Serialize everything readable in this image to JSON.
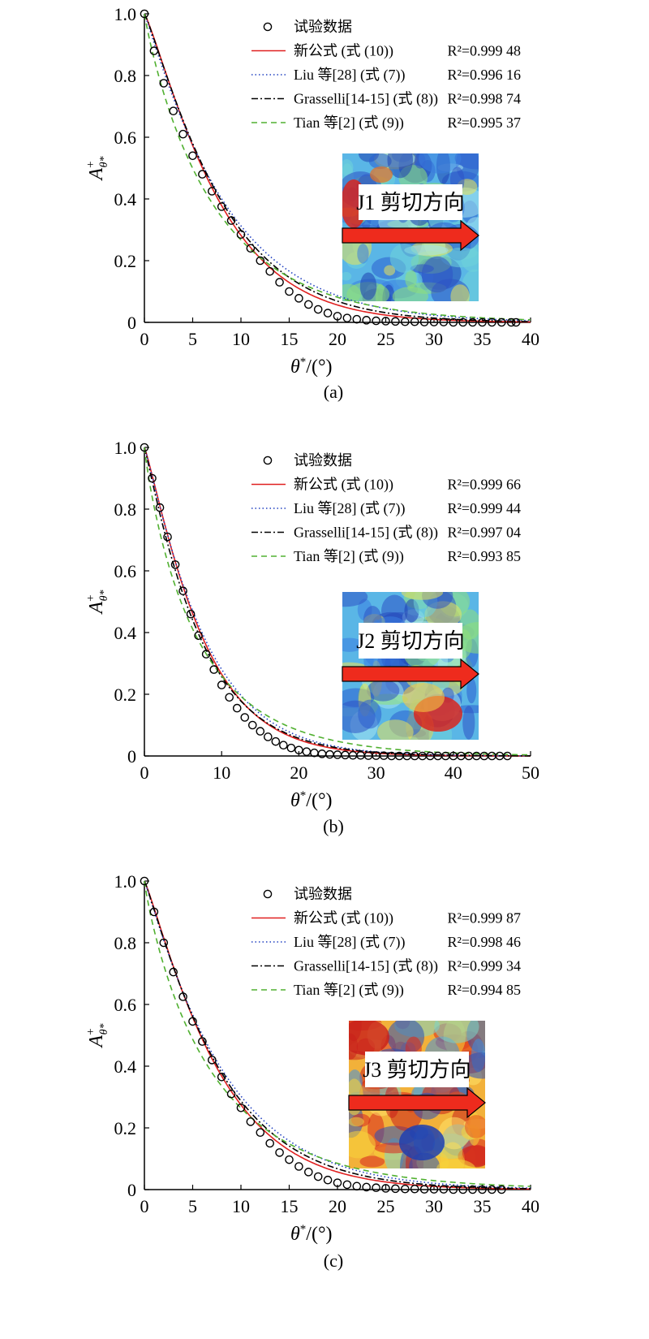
{
  "chart_data": [
    {
      "type": "scatter",
      "panel_label": "(a)",
      "xlabel": "θ*/(°)",
      "ylabel": "A+θ*",
      "xlim": [
        0,
        40
      ],
      "ylim": [
        0,
        1.0
      ],
      "xticks": [
        0,
        5,
        10,
        15,
        20,
        25,
        30,
        35,
        40
      ],
      "yticks": [
        0,
        0.2,
        0.4,
        0.6,
        0.8,
        1.0
      ],
      "inset_label": "J1 剪切方向",
      "inset_palette": "blue",
      "series": [
        {
          "name": "试验数据",
          "kind": "markers",
          "x": [
            0,
            1,
            2,
            3,
            4,
            5,
            6,
            7,
            8,
            9,
            10,
            11,
            12,
            13,
            14,
            15,
            16,
            17,
            18,
            19,
            20,
            21,
            22,
            23,
            24,
            25,
            26,
            27,
            28,
            29,
            30,
            31,
            32,
            33,
            34,
            35,
            36,
            37,
            38,
            38.5
          ],
          "y": [
            1.0,
            0.88,
            0.775,
            0.685,
            0.61,
            0.54,
            0.48,
            0.425,
            0.375,
            0.33,
            0.285,
            0.24,
            0.2,
            0.165,
            0.13,
            0.1,
            0.078,
            0.058,
            0.042,
            0.03,
            0.02,
            0.014,
            0.01,
            0.007,
            0.005,
            0.004,
            0.003,
            0.002,
            0.002,
            0.001,
            0.001,
            0.001,
            0.0,
            0.0,
            0.0,
            0.0,
            0.0,
            0.0,
            0.0,
            0.0
          ]
        },
        {
          "name": "新公式 (式 (10))",
          "r2": "R²=0.999 48",
          "kind": "line",
          "style": "solid",
          "color": "#e02020",
          "k": 0.122,
          "c": 1.6
        },
        {
          "name": "Liu 等[28] (式 (7))",
          "r2": "R²=0.996 16",
          "kind": "line",
          "style": "dotted",
          "color": "#2040c0",
          "k": 0.115,
          "c": 1.45
        },
        {
          "name": "Grasselli[14-15] (式 (8))",
          "r2": "R²=0.998 74",
          "kind": "line",
          "style": "dashdot",
          "color": "#000000",
          "k": 0.118,
          "c": 1.55
        },
        {
          "name": "Tian 等[2] (式 (9))",
          "r2": "R²=0.995 37",
          "kind": "line",
          "style": "dashed",
          "color": "#50b030",
          "k": 0.135,
          "c": 1.25
        }
      ]
    },
    {
      "type": "scatter",
      "panel_label": "(b)",
      "xlabel": "θ*/(°)",
      "ylabel": "A+θ*",
      "xlim": [
        0,
        50
      ],
      "ylim": [
        0,
        1.0
      ],
      "xticks": [
        0,
        10,
        20,
        30,
        40,
        50
      ],
      "yticks": [
        0,
        0.2,
        0.4,
        0.6,
        0.8,
        1.0
      ],
      "inset_label": "J2 剪切方向",
      "inset_palette": "blue",
      "series": [
        {
          "name": "试验数据",
          "kind": "markers",
          "x": [
            0,
            1,
            2,
            3,
            4,
            5,
            6,
            7,
            8,
            9,
            10,
            11,
            12,
            13,
            14,
            15,
            16,
            17,
            18,
            19,
            20,
            21,
            22,
            23,
            24,
            25,
            26,
            27,
            28,
            29,
            30,
            31,
            32,
            33,
            34,
            35,
            36,
            37,
            38,
            39,
            40,
            41,
            42,
            43,
            44,
            45,
            46,
            47
          ],
          "y": [
            1.0,
            0.9,
            0.805,
            0.71,
            0.62,
            0.535,
            0.46,
            0.39,
            0.33,
            0.28,
            0.23,
            0.19,
            0.155,
            0.125,
            0.1,
            0.08,
            0.062,
            0.047,
            0.035,
            0.026,
            0.019,
            0.014,
            0.01,
            0.007,
            0.005,
            0.004,
            0.003,
            0.002,
            0.002,
            0.001,
            0.001,
            0.001,
            0.0,
            0.0,
            0.0,
            0.0,
            0.0,
            0.0,
            0.0,
            0.0,
            0.0,
            0.0,
            0.0,
            0.0,
            0.0,
            0.0,
            0.0,
            0.0
          ]
        },
        {
          "name": "新公式 (式 (10))",
          "r2": "R²=0.999 66",
          "kind": "line",
          "style": "solid",
          "color": "#e02020",
          "k": 0.128,
          "c": 1.55
        },
        {
          "name": "Liu 等[28] (式 (7))",
          "r2": "R²=0.999 44",
          "kind": "line",
          "style": "dotted",
          "color": "#2040c0",
          "k": 0.124,
          "c": 1.5
        },
        {
          "name": "Grasselli[14-15] (式 (8))",
          "r2": "R²=0.997 04",
          "kind": "line",
          "style": "dashdot",
          "color": "#000000",
          "k": 0.133,
          "c": 1.45
        },
        {
          "name": "Tian 等[2] (式 (9))",
          "r2": "R²=0.993 85",
          "kind": "line",
          "style": "dashed",
          "color": "#50b030",
          "k": 0.14,
          "c": 1.2
        }
      ]
    },
    {
      "type": "scatter",
      "panel_label": "(c)",
      "xlabel": "θ*/(°)",
      "ylabel": "A+θ*",
      "xlim": [
        0,
        40
      ],
      "ylim": [
        0,
        1.0
      ],
      "xticks": [
        0,
        5,
        10,
        15,
        20,
        25,
        30,
        35,
        40
      ],
      "yticks": [
        0,
        0.2,
        0.4,
        0.6,
        0.8,
        1.0
      ],
      "inset_label": "J3 剪切方向",
      "inset_palette": "warm",
      "series": [
        {
          "name": "试验数据",
          "kind": "markers",
          "x": [
            0,
            1,
            2,
            3,
            4,
            5,
            6,
            7,
            8,
            9,
            10,
            11,
            12,
            13,
            14,
            15,
            16,
            17,
            18,
            19,
            20,
            21,
            22,
            23,
            24,
            25,
            26,
            27,
            28,
            29,
            30,
            31,
            32,
            33,
            34,
            35,
            36,
            37
          ],
          "y": [
            1.0,
            0.9,
            0.8,
            0.705,
            0.625,
            0.545,
            0.48,
            0.42,
            0.365,
            0.31,
            0.265,
            0.22,
            0.185,
            0.15,
            0.12,
            0.097,
            0.075,
            0.057,
            0.042,
            0.031,
            0.022,
            0.016,
            0.011,
            0.008,
            0.006,
            0.004,
            0.003,
            0.002,
            0.002,
            0.001,
            0.001,
            0.001,
            0.0,
            0.0,
            0.0,
            0.0,
            0.0,
            0.0
          ]
        },
        {
          "name": "新公式 (式 (10))",
          "r2": "R²=0.999 87",
          "kind": "line",
          "style": "solid",
          "color": "#e02020",
          "k": 0.125,
          "c": 1.55
        },
        {
          "name": "Liu 等[28] (式 (7))",
          "r2": "R²=0.998 46",
          "kind": "line",
          "style": "dotted",
          "color": "#2040c0",
          "k": 0.118,
          "c": 1.45
        },
        {
          "name": "Grasselli[14-15] (式 (8))",
          "r2": "R²=0.999 34",
          "kind": "line",
          "style": "dashdot",
          "color": "#000000",
          "k": 0.122,
          "c": 1.5
        },
        {
          "name": "Tian 等[2] (式 (9))",
          "r2": "R²=0.994 85",
          "kind": "line",
          "style": "dashed",
          "color": "#50b030",
          "k": 0.138,
          "c": 1.2
        }
      ]
    }
  ]
}
